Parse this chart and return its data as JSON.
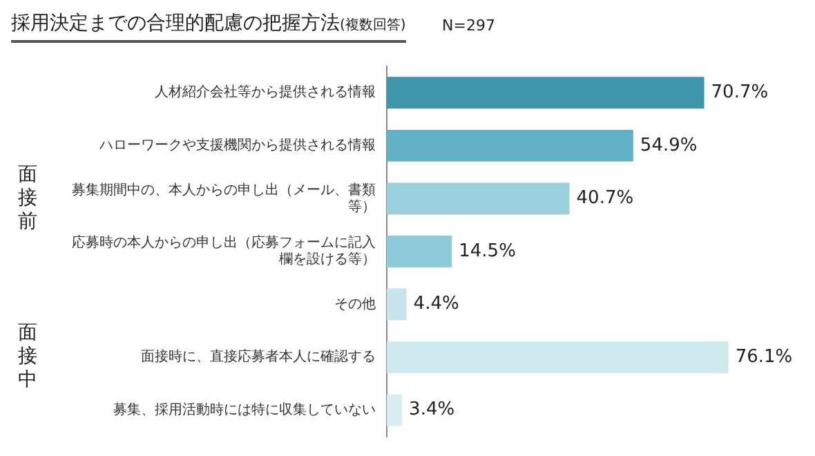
{
  "chart_data": {
    "type": "bar",
    "orientation": "horizontal",
    "title": "採用決定までの合理的配慮の把握方法",
    "subtitle": "(複数回答)",
    "categories": [
      "人材紹介会社等から提供される情報",
      "ハローワークや支援機関から提供される情報",
      "募集期間中の、本人からの申し出（メール、書類等）",
      "応募時の本人からの申し出（応募フォームに記入欄を設ける等）",
      "その他",
      "面接時に、直接応募者本人に確認する",
      "募集、採用活動時には特に収集していない"
    ],
    "values": [
      70.7,
      54.9,
      40.7,
      14.5,
      4.4,
      76.1,
      3.4
    ],
    "value_labels": [
      "70.7%",
      "54.9%",
      "40.7%",
      "14.5%",
      "4.4%",
      "76.1%",
      "3.4%"
    ],
    "colors": [
      "#3f97ab",
      "#62b2c7",
      "#9ccfdc",
      "#8ecbd9",
      "#c6e4eb",
      "#cfe8ee",
      "#d8ecf1"
    ],
    "annotations": [
      "N=297",
      "面接前",
      "面接中"
    ],
    "legend": false,
    "grid": false
  }
}
